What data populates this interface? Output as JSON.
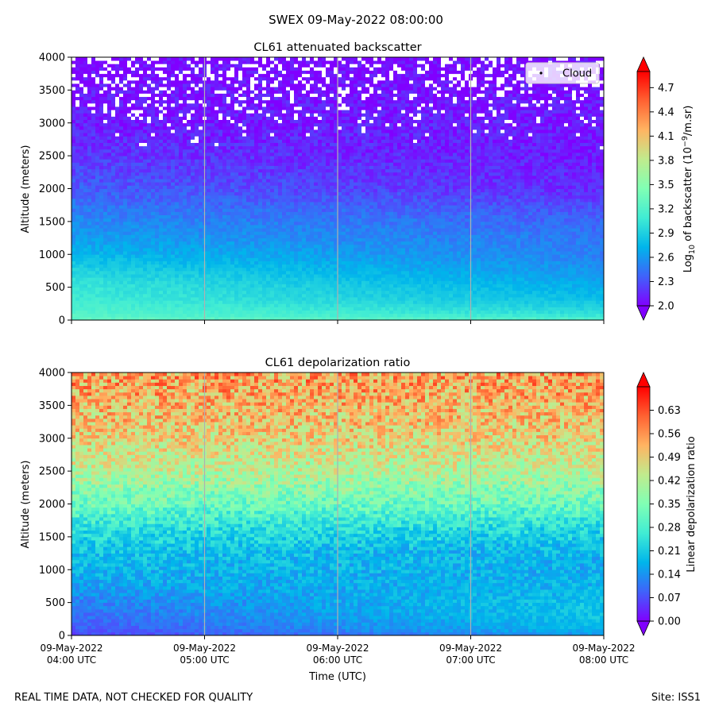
{
  "figure": {
    "title": "SWEX 09-May-2022 08:00:00",
    "footer_left": "REAL TIME DATA, NOT CHECKED FOR QUALITY",
    "footer_right": "Site: ISS1"
  },
  "chart_data": [
    {
      "type": "heatmap",
      "title": "CL61 attenuated backscatter",
      "xlabel": "",
      "ylabel": "Altitude (meters)",
      "ylim": [
        0,
        4000
      ],
      "yticks": [
        0,
        500,
        1000,
        1500,
        2000,
        2500,
        3000,
        3500,
        4000
      ],
      "x_range": [
        "09-May-2022 04:00 UTC",
        "09-May-2022 08:00 UTC"
      ],
      "xticks": [],
      "grid": "vertical",
      "legend": {
        "label": "Cloud",
        "placement": "top-right"
      },
      "colorbar": {
        "label": "Log10 of backscatter (10^-9/m.sr)",
        "label_main": "Log",
        "label_sub": "10",
        "label_rest": " of backscatter (10",
        "label_sup": "−9",
        "label_end": "/m.sr)",
        "ticks": [
          "2.0",
          "2.3",
          "2.6",
          "2.9",
          "3.2",
          "3.5",
          "3.8",
          "4.1",
          "4.4",
          "4.7"
        ],
        "range": [
          2.0,
          4.9
        ],
        "colormap": "rainbow",
        "extend": "both"
      },
      "profile": {
        "altitude": [
          0,
          100,
          300,
          500,
          700,
          1000,
          1300,
          1600,
          2000,
          2500,
          3000,
          3500,
          4000
        ],
        "value_start": [
          3.3,
          3.2,
          3.1,
          3.05,
          2.95,
          2.75,
          2.6,
          2.5,
          2.35,
          2.2,
          2.1,
          2.05,
          2.0
        ],
        "value_end": [
          3.2,
          3.0,
          2.8,
          2.7,
          2.6,
          2.5,
          2.45,
          2.35,
          2.15,
          2.1,
          2.1,
          2.05,
          2.0
        ]
      }
    },
    {
      "type": "heatmap",
      "title": "CL61 depolarization ratio",
      "xlabel": "Time (UTC)",
      "ylabel": "Altitude (meters)",
      "ylim": [
        0,
        4000
      ],
      "yticks": [
        0,
        500,
        1000,
        1500,
        2000,
        2500,
        3000,
        3500,
        4000
      ],
      "xticks": [
        {
          "date": "09-May-2022",
          "time": "04:00 UTC"
        },
        {
          "date": "09-May-2022",
          "time": "05:00 UTC"
        },
        {
          "date": "09-May-2022",
          "time": "06:00 UTC"
        },
        {
          "date": "09-May-2022",
          "time": "07:00 UTC"
        },
        {
          "date": "09-May-2022",
          "time": "08:00 UTC"
        }
      ],
      "grid": "vertical",
      "colorbar": {
        "label": "Linear depolarization ratio",
        "ticks": [
          "0.00",
          "0.07",
          "0.14",
          "0.21",
          "0.28",
          "0.35",
          "0.42",
          "0.49",
          "0.56",
          "0.63"
        ],
        "range": [
          0.0,
          0.7
        ],
        "colormap": "rainbow",
        "extend": "both"
      },
      "profile": {
        "altitude": [
          0,
          100,
          300,
          500,
          700,
          1000,
          1300,
          1600,
          2000,
          2500,
          3000,
          3500,
          4000
        ],
        "value_start": [
          0.06,
          0.08,
          0.1,
          0.12,
          0.15,
          0.18,
          0.2,
          0.24,
          0.32,
          0.42,
          0.48,
          0.52,
          0.55
        ],
        "value_end": [
          0.14,
          0.18,
          0.2,
          0.2,
          0.18,
          0.17,
          0.18,
          0.22,
          0.32,
          0.42,
          0.48,
          0.52,
          0.55
        ]
      }
    }
  ]
}
